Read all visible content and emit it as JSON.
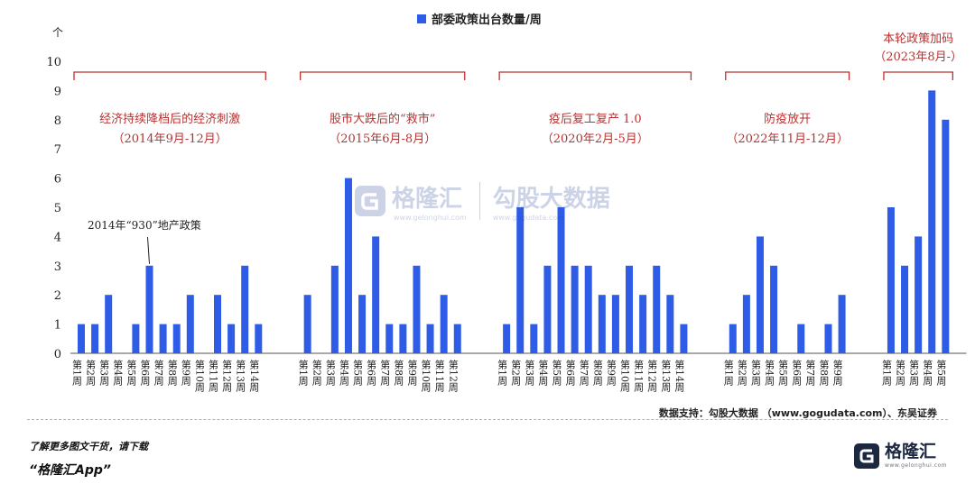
{
  "chart_data": {
    "type": "bar",
    "title": "部委政策出台数量/周",
    "ylabel": "个",
    "ylim": [
      0,
      10
    ],
    "yticks": [
      "0",
      "1",
      "2",
      "3",
      "4",
      "5",
      "6",
      "7",
      "8",
      "9",
      "10"
    ],
    "legend": {
      "label": "部委政策出台数量/周",
      "position": "top-center"
    },
    "groups": [
      {
        "label": "经济持续降档后的经济刺激",
        "period": "（2014年9月-12月）",
        "categories": [
          "第1周",
          "第2周",
          "第3周",
          "第4周",
          "第5周",
          "第6周",
          "第7周",
          "第8周",
          "第9周",
          "第10周",
          "第11周",
          "第12周",
          "第13周",
          "第14周"
        ],
        "values": [
          1,
          1,
          2,
          0,
          1,
          3,
          1,
          1,
          2,
          0,
          2,
          1,
          3,
          1
        ]
      },
      {
        "label": "股市大跌后的“救市”",
        "period": "（2015年6月-8月）",
        "categories": [
          "第1周",
          "第2周",
          "第3周",
          "第4周",
          "第5周",
          "第6周",
          "第7周",
          "第8周",
          "第9周",
          "第10周",
          "第11周",
          "第12周"
        ],
        "values": [
          2,
          0,
          3,
          6,
          2,
          4,
          1,
          1,
          3,
          1,
          2,
          1
        ]
      },
      {
        "label": "疫后复工复产 1.0",
        "period": "（2020年2月-5月）",
        "categories": [
          "第1周",
          "第2周",
          "第3周",
          "第4周",
          "第5周",
          "第6周",
          "第7周",
          "第8周",
          "第9周",
          "第10周",
          "第11周",
          "第12周",
          "第13周",
          "第14周"
        ],
        "values": [
          1,
          5,
          1,
          3,
          5,
          3,
          3,
          2,
          2,
          3,
          2,
          3,
          2,
          1
        ]
      },
      {
        "label": "防疫放开",
        "period": "（2022年11月-12月）",
        "categories": [
          "第1周",
          "第2周",
          "第3周",
          "第4周",
          "第5周",
          "第6周",
          "第7周",
          "第8周",
          "第9周"
        ],
        "values": [
          1,
          2,
          4,
          3,
          0,
          1,
          0,
          1,
          2
        ]
      },
      {
        "label": "本轮政策加码",
        "period": "（2023年8月-）",
        "categories": [
          "第1周",
          "第2周",
          "第3周",
          "第4周",
          "第5周"
        ],
        "values": [
          5,
          3,
          4,
          9,
          8
        ]
      }
    ],
    "annotations": [
      {
        "text": "2014年“930”地产政策",
        "group": 0,
        "index": 5
      }
    ],
    "bar_color": "#2f5ce6",
    "label_color": "#b8312f",
    "grid": false
  },
  "watermark": {
    "brand": "格隆汇",
    "brand_url": "www.gelonghui.com",
    "partner": "勾股大数据",
    "partner_url": "www.gogudata.com"
  },
  "footer": {
    "source": "数据支持：勾股大数据 （www.gogudata.com）、东吴证券",
    "promo_line1": "了解更多图文干货，请下载",
    "promo_line2": "“格隆汇App”",
    "brand_name": "格隆汇",
    "brand_url": "www.gelonghui.com"
  }
}
